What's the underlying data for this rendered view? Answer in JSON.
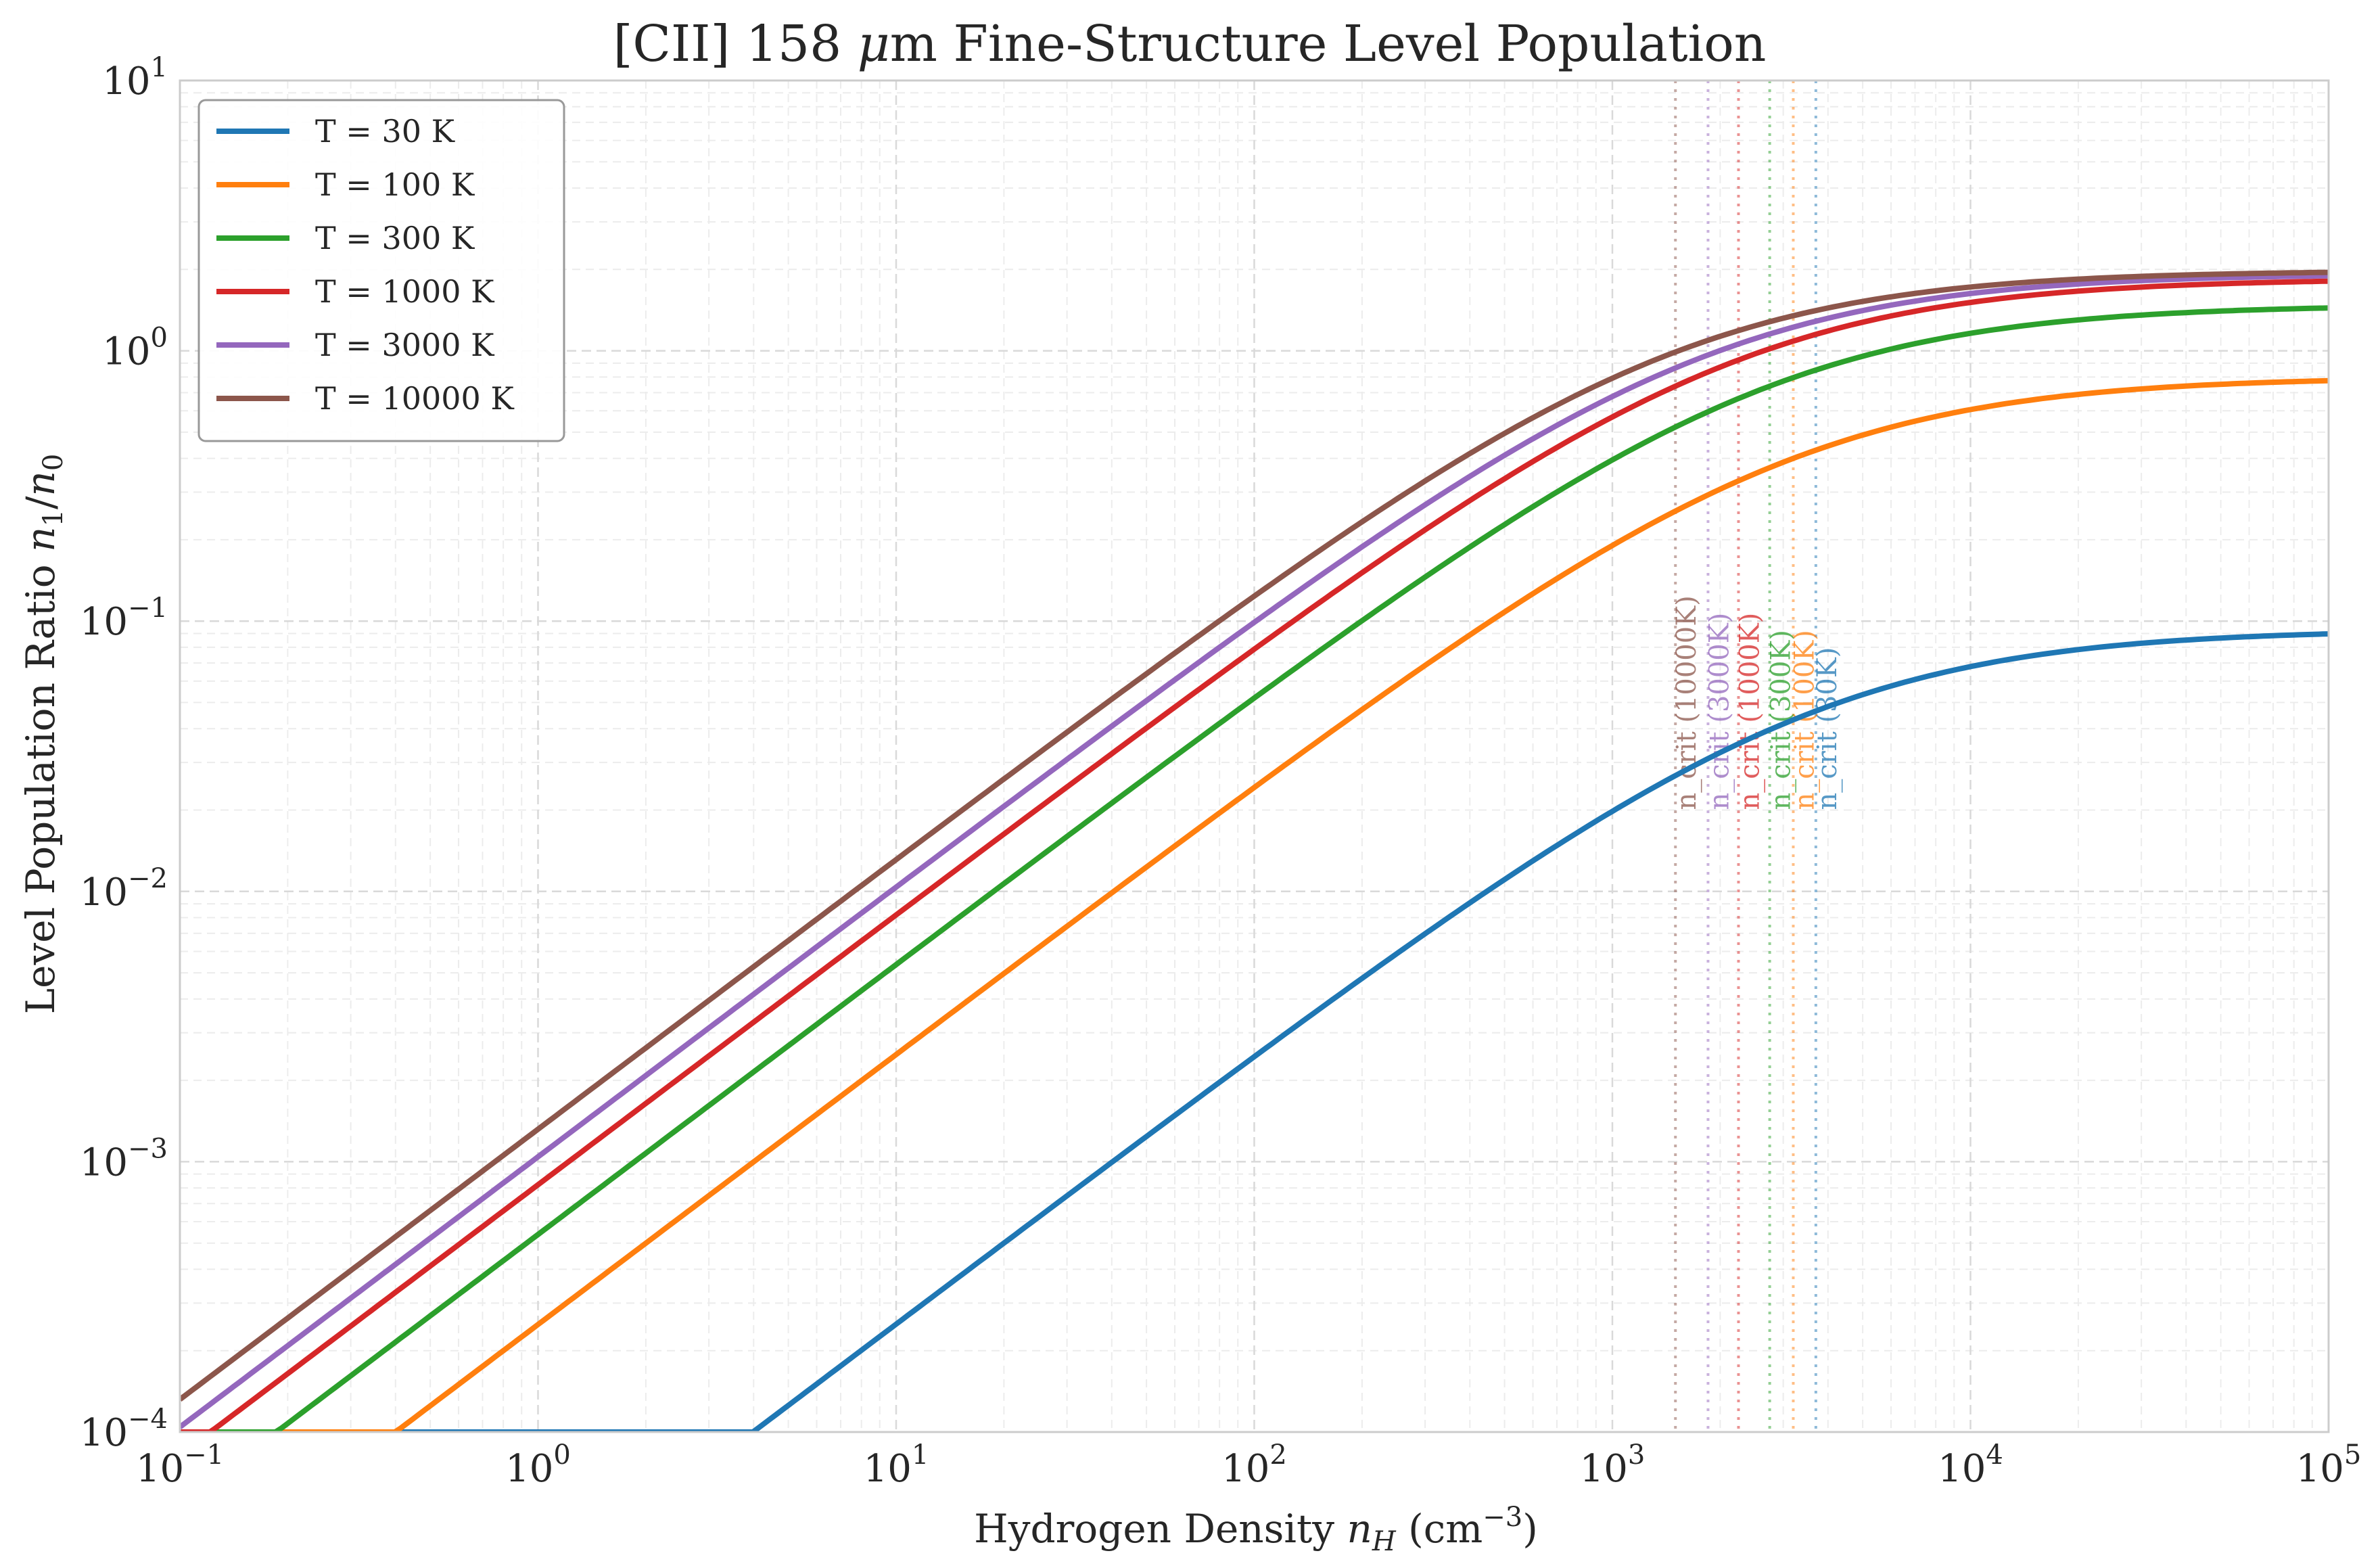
{
  "chart_data": {
    "type": "line",
    "title": "[CII] 158 μm Fine-Structure Level Population",
    "xlabel": "Hydrogen Density n_H (cm⁻³)",
    "ylabel": "Level Population Ratio n₁/n₀",
    "xscale": "log",
    "yscale": "log",
    "xlim": [
      0.1,
      100000
    ],
    "ylim": [
      0.0001,
      10
    ],
    "x_ticks": [
      {
        "value": 0.1,
        "base": "10",
        "exp": "−1"
      },
      {
        "value": 1,
        "base": "10",
        "exp": "0"
      },
      {
        "value": 10,
        "base": "10",
        "exp": "1"
      },
      {
        "value": 100,
        "base": "10",
        "exp": "2"
      },
      {
        "value": 1000,
        "base": "10",
        "exp": "3"
      },
      {
        "value": 10000,
        "base": "10",
        "exp": "4"
      },
      {
        "value": 100000,
        "base": "10",
        "exp": "5"
      }
    ],
    "y_ticks": [
      {
        "value": 0.0001,
        "base": "10",
        "exp": "−4"
      },
      {
        "value": 0.001,
        "base": "10",
        "exp": "−3"
      },
      {
        "value": 0.01,
        "base": "10",
        "exp": "−2"
      },
      {
        "value": 0.1,
        "base": "10",
        "exp": "−1"
      },
      {
        "value": 1,
        "base": "10",
        "exp": "0"
      },
      {
        "value": 10,
        "base": "10",
        "exp": "1"
      }
    ],
    "grid": true,
    "legend_position": "top-left",
    "series": [
      {
        "name": "T = 30 K",
        "color": "#1f77b4",
        "saturation": 0.093,
        "n_crit": 3700
      },
      {
        "name": "T = 100 K",
        "color": "#ff7f0e",
        "saturation": 0.8,
        "n_crit": 3200
      },
      {
        "name": "T = 300 K",
        "color": "#2ca02c",
        "saturation": 1.48,
        "n_crit": 2750
      },
      {
        "name": "T = 1000 K",
        "color": "#d62728",
        "saturation": 1.85,
        "n_crit": 2250
      },
      {
        "name": "T = 3000 K",
        "color": "#9467bd",
        "saturation": 1.93,
        "n_crit": 1850
      },
      {
        "name": "T = 10000 K",
        "color": "#8c564b",
        "saturation": 1.98,
        "n_crit": 1500
      }
    ],
    "annotations": [
      {
        "text": "n_crit (30K)",
        "color": "#1f77b4",
        "x": 3700
      },
      {
        "text": "n_crit (100K)",
        "color": "#ff7f0e",
        "x": 3200
      },
      {
        "text": "n_crit (300K)",
        "color": "#2ca02c",
        "x": 2750
      },
      {
        "text": "n_crit (1000K)",
        "color": "#d62728",
        "x": 2250
      },
      {
        "text": "n_crit (3000K)",
        "color": "#9467bd",
        "x": 1850
      },
      {
        "text": "n_crit (10000K)",
        "color": "#8c564b",
        "x": 1500
      }
    ]
  }
}
